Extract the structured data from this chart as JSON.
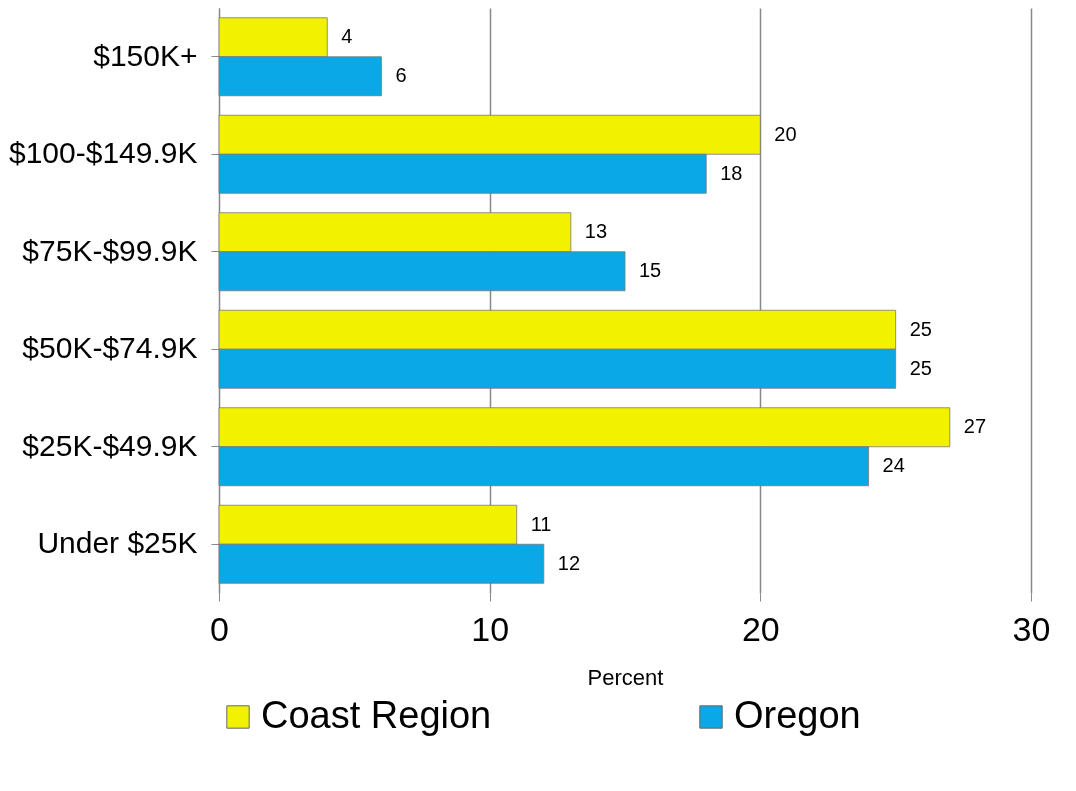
{
  "chart_data": {
    "type": "bar",
    "orientation": "horizontal",
    "xlabel": "Percent",
    "categories": [
      "$150K+",
      "$100-$149.9K",
      "$75K-$99.9K",
      "$50K-$74.9K",
      "$25K-$49.9K",
      "Under $25K"
    ],
    "series": [
      {
        "name": "Coast Region",
        "color": "#f2f200",
        "values": [
          4,
          20,
          13,
          25,
          27,
          11
        ]
      },
      {
        "name": "Oregon",
        "color": "#0aa8e6",
        "values": [
          6,
          18,
          15,
          25,
          24,
          12
        ]
      }
    ],
    "xlim": [
      0,
      30
    ],
    "xticks": [
      0,
      10,
      20,
      30
    ],
    "grid": "x",
    "legend": "bottom",
    "data_labels": true
  }
}
